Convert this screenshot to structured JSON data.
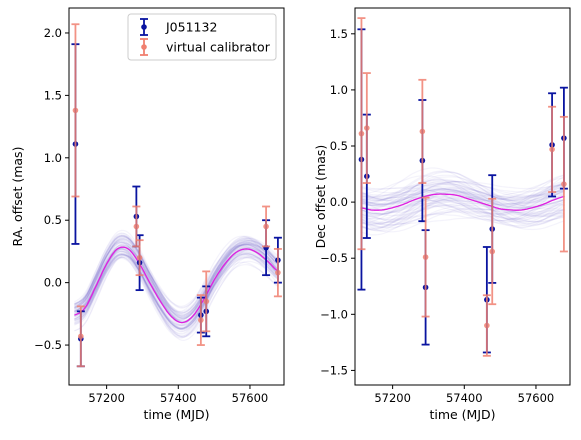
{
  "chart_data": [
    {
      "type": "scatter",
      "xlabel": "time (MJD)",
      "ylabel": "RA. offset (mas)",
      "xlim": [
        57095,
        57695
      ],
      "ylim": [
        -0.82,
        2.2
      ],
      "xticks": [
        57200,
        57400,
        57600
      ],
      "xtick_labels": [
        "57200",
        "57400",
        "57600"
      ],
      "yticks": [
        -0.5,
        0.0,
        0.5,
        1.0,
        1.5,
        2.0
      ],
      "ytick_labels": [
        "−0.5",
        "0.0",
        "0.5",
        "1.0",
        "1.5",
        "2.0"
      ],
      "legend": {
        "position": "upper-right",
        "entries": [
          "J051132",
          "virtual calibrator"
        ]
      },
      "series": [
        {
          "name": "J051132",
          "color": "#0a14a0",
          "points": [
            {
              "x": 57113,
              "y": 1.11,
              "err": 0.8
            },
            {
              "x": 57128,
              "y": -0.45,
              "err": 0.22
            },
            {
              "x": 57283,
              "y": 0.53,
              "err": 0.24
            },
            {
              "x": 57292,
              "y": 0.16,
              "err": 0.22
            },
            {
              "x": 57463,
              "y": -0.26,
              "err": 0.14
            },
            {
              "x": 57478,
              "y": -0.23,
              "err": 0.2
            },
            {
              "x": 57645,
              "y": 0.28,
              "err": 0.22
            },
            {
              "x": 57678,
              "y": 0.18,
              "err": 0.18
            }
          ]
        },
        {
          "name": "virtual calibrator",
          "color": "#f08070",
          "points": [
            {
              "x": 57113,
              "y": 1.38,
              "err": 0.69
            },
            {
              "x": 57128,
              "y": -0.43,
              "err": 0.24
            },
            {
              "x": 57283,
              "y": 0.45,
              "err": 0.16
            },
            {
              "x": 57292,
              "y": 0.2,
              "err": 0.14
            },
            {
              "x": 57463,
              "y": -0.3,
              "err": 0.2
            },
            {
              "x": 57478,
              "y": -0.15,
              "err": 0.24
            },
            {
              "x": 57645,
              "y": 0.45,
              "err": 0.16
            },
            {
              "x": 57678,
              "y": 0.08,
              "err": 0.19
            }
          ]
        }
      ],
      "model_curve": {
        "color": "#e020e0",
        "x": [
          57110,
          57140,
          57170,
          57200,
          57230,
          57260,
          57290,
          57320,
          57350,
          57380,
          57410,
          57440,
          57470,
          57500,
          57530,
          57560,
          57590,
          57620,
          57650,
          57680
        ],
        "y": [
          -0.26,
          -0.2,
          -0.03,
          0.15,
          0.27,
          0.27,
          0.16,
          0.0,
          -0.15,
          -0.27,
          -0.32,
          -0.27,
          -0.14,
          0.02,
          0.15,
          0.24,
          0.27,
          0.24,
          0.17,
          0.09
        ]
      },
      "band_color": "#6a5acd"
    },
    {
      "type": "scatter",
      "xlabel": "time (MJD)",
      "ylabel": "Dec offset (mas)",
      "xlim": [
        57095,
        57695
      ],
      "ylim": [
        -1.63,
        1.73
      ],
      "xticks": [
        57200,
        57400,
        57600
      ],
      "xtick_labels": [
        "57200",
        "57400",
        "57600"
      ],
      "yticks": [
        -1.5,
        -1.0,
        -0.5,
        0.0,
        0.5,
        1.0,
        1.5
      ],
      "ytick_labels": [
        "−1.5",
        "−1.0",
        "−0.5",
        "0.0",
        "0.5",
        "1.0",
        "1.5"
      ],
      "series": [
        {
          "name": "J051132",
          "color": "#0a14a0",
          "points": [
            {
              "x": 57113,
              "y": 0.38,
              "err": 1.16
            },
            {
              "x": 57128,
              "y": 0.23,
              "err": 0.55
            },
            {
              "x": 57283,
              "y": 0.37,
              "err": 0.54
            },
            {
              "x": 57292,
              "y": -0.76,
              "err": 0.51
            },
            {
              "x": 57463,
              "y": -0.87,
              "err": 0.47
            },
            {
              "x": 57478,
              "y": -0.24,
              "err": 0.48
            },
            {
              "x": 57645,
              "y": 0.51,
              "err": 0.46
            },
            {
              "x": 57678,
              "y": 0.57,
              "err": 0.45
            }
          ]
        },
        {
          "name": "virtual calibrator",
          "color": "#f08070",
          "points": [
            {
              "x": 57113,
              "y": 0.61,
              "err": 1.03
            },
            {
              "x": 57128,
              "y": 0.66,
              "err": 0.49
            },
            {
              "x": 57283,
              "y": 0.63,
              "err": 0.46
            },
            {
              "x": 57292,
              "y": -0.49,
              "err": 0.53
            },
            {
              "x": 57463,
              "y": -1.1,
              "err": 0.27
            },
            {
              "x": 57478,
              "y": -0.44,
              "err": 0.47
            },
            {
              "x": 57645,
              "y": 0.47,
              "err": 0.38
            },
            {
              "x": 57678,
              "y": 0.16,
              "err": 0.6
            }
          ]
        }
      ],
      "model_curve": {
        "color": "#e020e0",
        "x": [
          57110,
          57140,
          57170,
          57200,
          57230,
          57260,
          57290,
          57320,
          57350,
          57380,
          57410,
          57440,
          57470,
          57500,
          57530,
          57560,
          57590,
          57620,
          57650,
          57680
        ],
        "y": [
          -0.05,
          -0.07,
          -0.07,
          -0.05,
          -0.02,
          0.02,
          0.05,
          0.07,
          0.07,
          0.06,
          0.03,
          0.0,
          -0.03,
          -0.06,
          -0.07,
          -0.07,
          -0.05,
          -0.02,
          0.02,
          0.05
        ]
      },
      "band_color": "#6a5acd"
    }
  ]
}
